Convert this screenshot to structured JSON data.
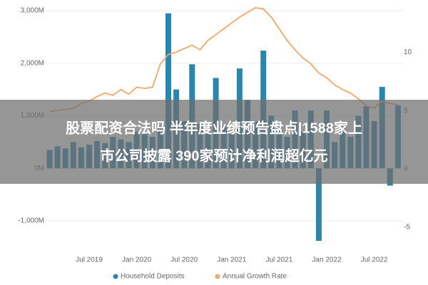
{
  "chart_data": {
    "type": "bar_line",
    "categories": [
      null,
      null,
      null,
      null,
      null,
      "Jul 2019",
      null,
      null,
      null,
      null,
      null,
      "Jan 2020",
      null,
      null,
      null,
      null,
      null,
      "Jul 2020",
      null,
      null,
      null,
      null,
      null,
      "Jan 2021",
      null,
      null,
      null,
      null,
      null,
      "Jul 2021",
      null,
      null,
      null,
      null,
      null,
      "Jan 2022",
      null,
      null,
      null,
      null,
      null,
      "Jul 2022",
      null,
      null,
      null
    ],
    "series": [
      {
        "name": "Household Deposits",
        "color": "#2b86ad",
        "axis": "y",
        "values": [
          350,
          420,
          380,
          500,
          400,
          450,
          520,
          480,
          600,
          550,
          500,
          700,
          650,
          600,
          800,
          2950,
          1500,
          900,
          1980,
          850,
          700,
          1720,
          800,
          650,
          1900,
          1300,
          900,
          2240,
          1000,
          800,
          600,
          1100,
          700,
          1100,
          -1380,
          1100,
          500,
          800,
          600,
          1000,
          1180,
          900,
          1550,
          -330,
          1200
        ]
      },
      {
        "name": "Annual Growth Rate",
        "color": "#f5a66b",
        "axis": "y2",
        "values": [
          4.9,
          5.0,
          5.1,
          5.2,
          5.6,
          5.8,
          6.2,
          6.5,
          6.3,
          6.8,
          6.4,
          7.0,
          6.9,
          7.0,
          9.0,
          9.8,
          10.0,
          10.3,
          10.6,
          10.2,
          11.0,
          11.5,
          12.0,
          12.5,
          13.0,
          13.4,
          13.8,
          13.7,
          13.0,
          12.0,
          11.0,
          10.2,
          9.5,
          9.0,
          8.2,
          7.8,
          7.2,
          6.8,
          6.5,
          6.0,
          5.4,
          5.2,
          5.8,
          5.6,
          5.5
        ]
      }
    ],
    "ylim": [
      -1400,
      3100
    ],
    "yticks": [
      {
        "value": 3000,
        "label": "3,000M"
      },
      {
        "value": 2000,
        "label": "2,000M"
      },
      {
        "value": 1000,
        "label": "1,000M"
      },
      {
        "value": 0,
        "label": "0M"
      },
      {
        "value": -1000,
        "label": "-1,000M"
      }
    ],
    "y2lim": [
      -6.25,
      14
    ],
    "y2ticks": [
      10,
      5,
      0,
      -5
    ],
    "legend": "bottom"
  },
  "overlay": {
    "lines": [
      "股票配资合法吗 半年度业绩预告盘点|1588家上",
      "市公司披露 390家预计净利润超亿元"
    ]
  }
}
